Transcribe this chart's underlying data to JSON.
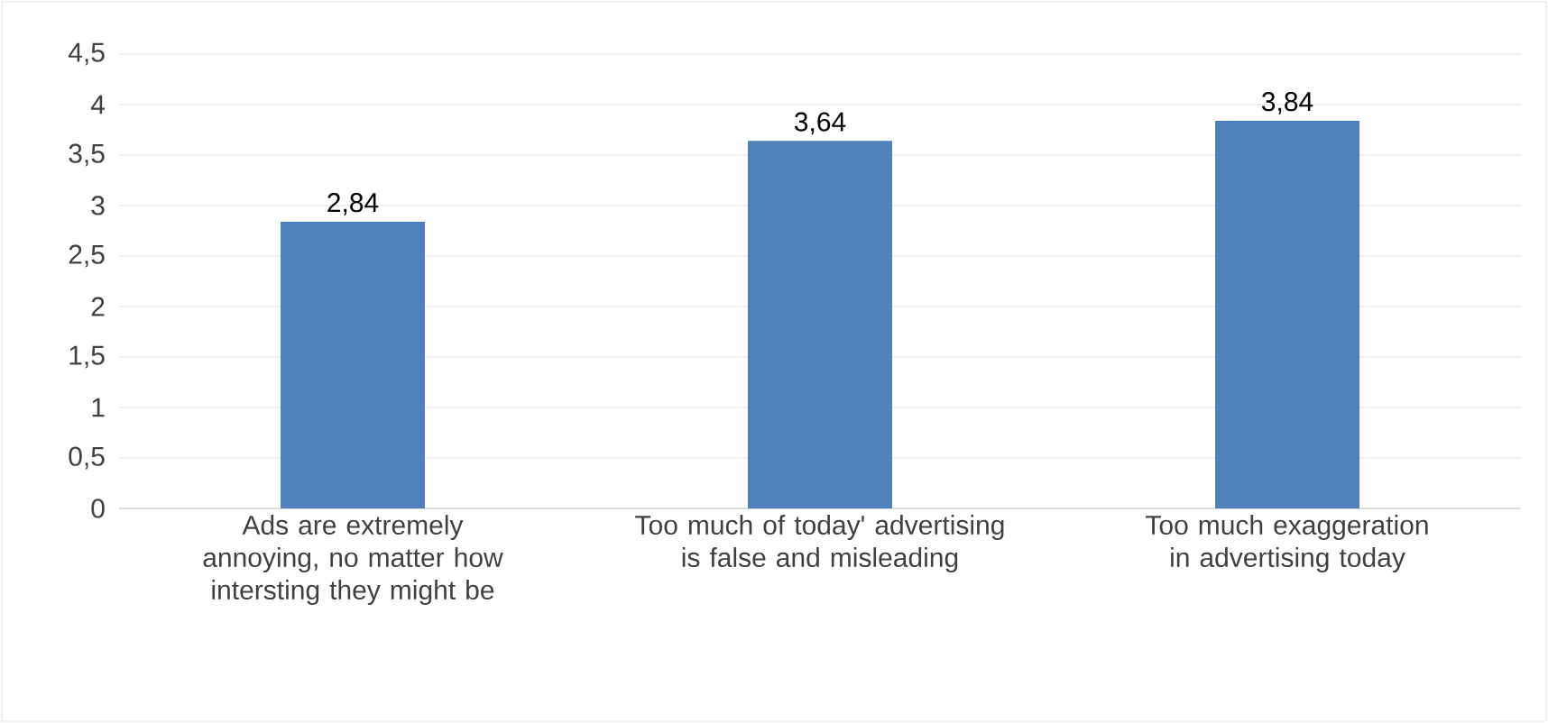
{
  "chart_data": {
    "type": "bar",
    "categories": [
      "Ads are extremely annoying, no matter how intersting they might be",
      "Too much of today' advertising is false and misleading",
      "Too much exaggeration in advertising today"
    ],
    "values": [
      2.84,
      3.64,
      3.84
    ],
    "value_labels": [
      "2,84",
      "3,64",
      "3,84"
    ],
    "color": "#4f81bd",
    "ylim": [
      0,
      4.5
    ],
    "yticks": [
      0,
      {
        "value": 0.5,
        "label": "0,5"
      },
      1,
      {
        "value": 1.5,
        "label": "1,5"
      },
      2,
      {
        "value": 2.5,
        "label": "2,5"
      },
      3,
      {
        "value": 3.5,
        "label": "3,5"
      },
      4,
      {
        "value": 4.5,
        "label": "4,5"
      }
    ],
    "grid": "y"
  }
}
